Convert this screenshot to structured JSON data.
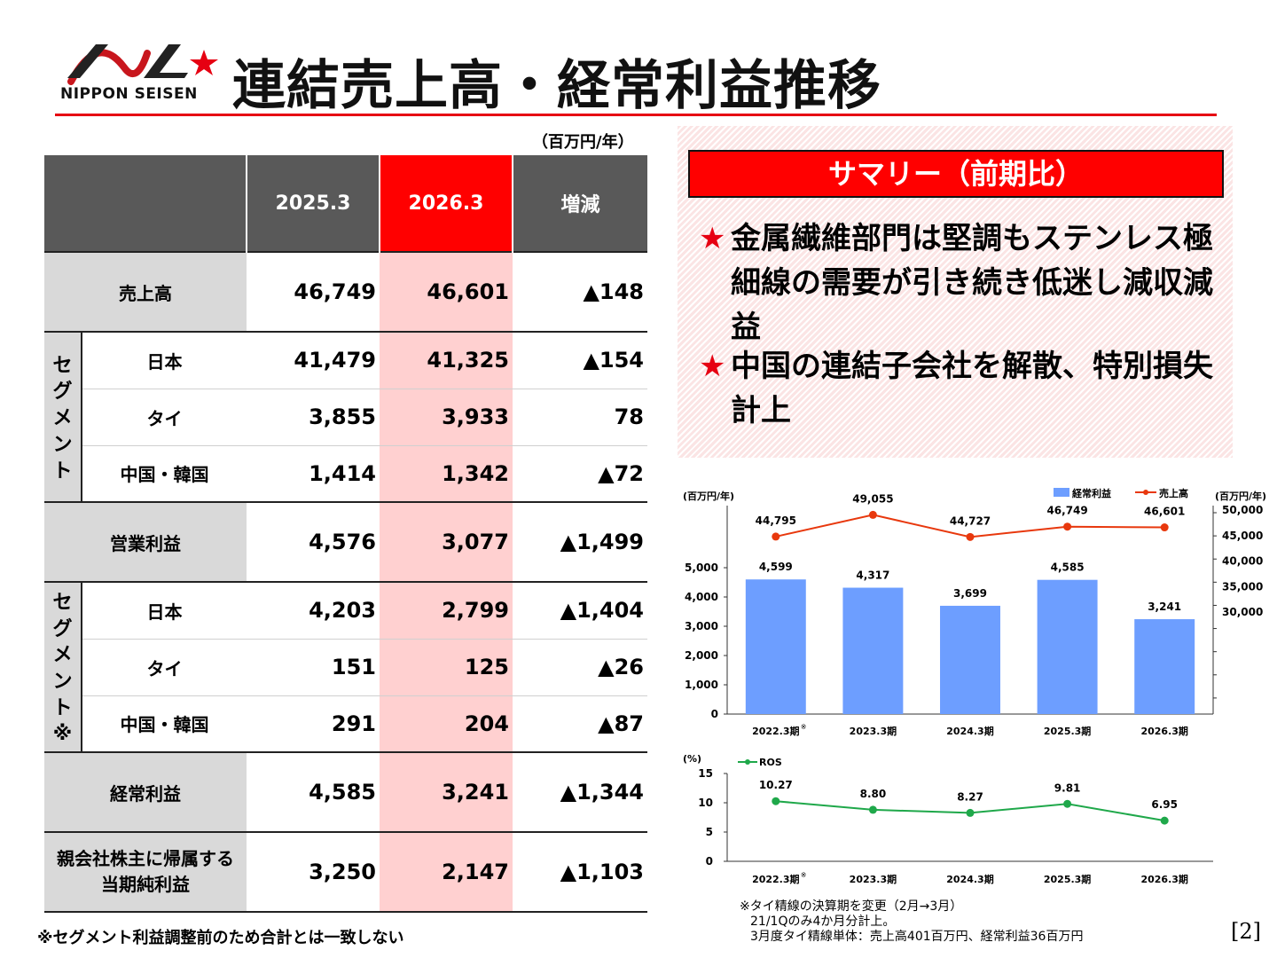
{
  "header": {
    "logo_text": "NIPPON SEISEN",
    "title": "連結売上高・経常利益推移",
    "unit": "（百万円/年）"
  },
  "table": {
    "columns": [
      "",
      "2025.3",
      "2026.3",
      "増減"
    ],
    "rows": [
      {
        "label": "売上高",
        "v2025": "46,749",
        "v2026": "46,601",
        "diff": "▲148"
      },
      {
        "segment_label": "セグメント",
        "sub": "日本",
        "v2025": "41,479",
        "v2026": "41,325",
        "diff": "▲154"
      },
      {
        "sub": "タイ",
        "v2025": "3,855",
        "v2026": "3,933",
        "diff": "78"
      },
      {
        "sub": "中国・韓国",
        "v2025": "1,414",
        "v2026": "1,342",
        "diff": "▲72"
      },
      {
        "label": "営業利益",
        "v2025": "4,576",
        "v2026": "3,077",
        "diff": "▲1,499"
      },
      {
        "segment_label": "セグメント※",
        "sub": "日本",
        "v2025": "4,203",
        "v2026": "2,799",
        "diff": "▲1,404"
      },
      {
        "sub": "タイ",
        "v2025": "151",
        "v2026": "125",
        "diff": "▲26"
      },
      {
        "sub": "中国・韓国",
        "v2025": "291",
        "v2026": "204",
        "diff": "▲87"
      },
      {
        "label": "経常利益",
        "v2025": "4,585",
        "v2026": "3,241",
        "diff": "▲1,344"
      },
      {
        "label": "親会社株主に帰属する当期純利益",
        "v2025": "3,250",
        "v2026": "2,147",
        "diff": "▲1,103"
      }
    ],
    "note": "※セグメント利益調整前のため合計とは一致しない"
  },
  "summary": {
    "title": "サマリー（前期比）",
    "star": "★",
    "bullets": [
      "金属繊維部門は堅調もステンレス極細線の需要が引き続き低迷し減収減益",
      "中国の連結子会社を解散、特別損失計上"
    ]
  },
  "chart_data": [
    {
      "type": "bar",
      "categories": [
        "2022.3期",
        "2023.3期",
        "2024.3期",
        "2025.3期",
        "2026.3期"
      ],
      "category_marks": [
        "※",
        "",
        "",
        "",
        ""
      ],
      "ylabel_left": "(百万円/年)",
      "ylabel_right": "(百万円/年)",
      "series": [
        {
          "name": "経常利益",
          "type": "bar",
          "values": [
            4599,
            4317,
            3699,
            4585,
            3241
          ],
          "labels": [
            "4,599",
            "4,317",
            "3,699",
            "4,585",
            "3,241"
          ],
          "color": "#6d9eff",
          "axis": "left"
        },
        {
          "name": "売上高",
          "type": "line",
          "values": [
            44795,
            49055,
            44727,
            46749,
            46601
          ],
          "labels": [
            "44,795",
            "49,055",
            "44,727",
            "46,749",
            "46,601"
          ],
          "color": "#e8380d",
          "axis": "right"
        }
      ],
      "ylim_left": [
        0,
        5000
      ],
      "yticks_left": [
        "0",
        "1,000",
        "2,000",
        "3,000",
        "4,000",
        "5,000"
      ],
      "ylim_right": [
        30000,
        50000
      ],
      "yticks_right": [
        "30,000",
        "35,000",
        "40,000",
        "45,000",
        "50,000"
      ],
      "legend": "top-right"
    },
    {
      "type": "line",
      "categories": [
        "2022.3期",
        "2023.3期",
        "2024.3期",
        "2025.3期",
        "2026.3期"
      ],
      "category_marks": [
        "※",
        "",
        "",
        "",
        ""
      ],
      "ylabel": "(%)",
      "series": [
        {
          "name": "ROS",
          "values": [
            10.27,
            8.8,
            8.27,
            9.81,
            6.95
          ],
          "labels": [
            "10.27",
            "8.80",
            "8.27",
            "9.81",
            "6.95"
          ],
          "color": "#1fa84a"
        }
      ],
      "ylim": [
        0,
        15
      ],
      "yticks": [
        "0",
        "5",
        "10",
        "15"
      ],
      "legend": "top-left"
    }
  ],
  "footnote": {
    "lines": [
      "※タイ精線の決算期を変更（2月→3月）",
      "21/1Qのみ4か月分計上。",
      "3月度タイ精線単体：売上高401百万円、経常利益36百万円"
    ]
  },
  "page_number": "[2]",
  "colors": {
    "accent": "#e60012",
    "bar": "#6d9eff",
    "sales_line": "#e8380d",
    "ros_line": "#1fa84a",
    "header_gray": "#595959",
    "highlight": "#ffd0d0"
  }
}
